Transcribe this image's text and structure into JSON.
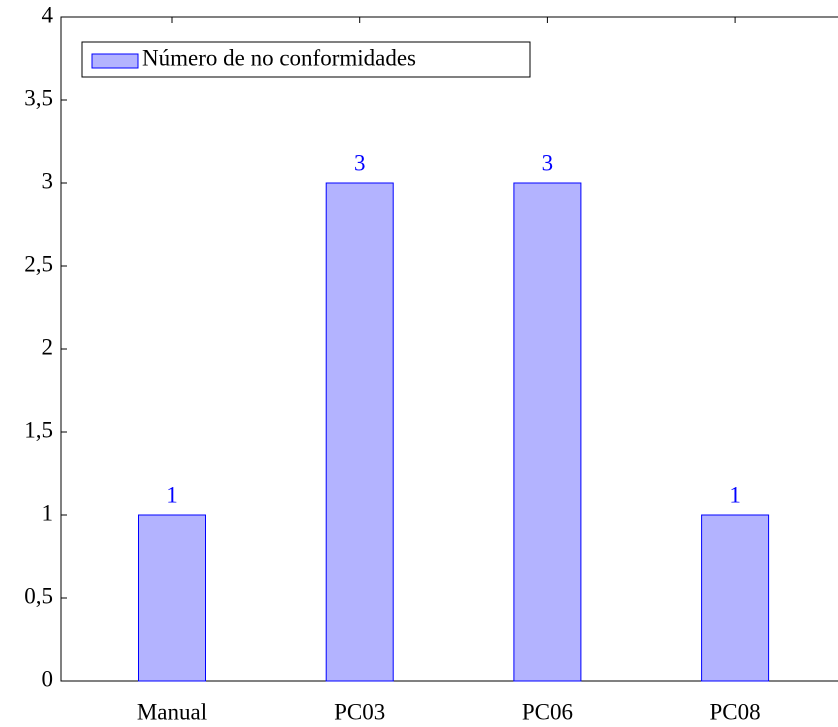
{
  "chart_data": {
    "type": "bar",
    "categories": [
      "Manual",
      "PC03",
      "PC06",
      "PC08"
    ],
    "series": [
      {
        "name": "Número de no conformidades",
        "color": "#b3b3ff",
        "edge": "#0000ff",
        "values": [
          1,
          3,
          3,
          1
        ]
      }
    ],
    "ylim": [
      0,
      4
    ],
    "yticks": [
      0,
      {
        "value": 0.5,
        "label": "0,5"
      },
      1,
      {
        "value": 1.5,
        "label": "1,5"
      },
      2,
      {
        "value": 2.5,
        "label": "2,5"
      },
      3,
      {
        "value": 3.5,
        "label": "3,5"
      },
      4
    ],
    "legend": "upper left",
    "grid": false
  }
}
